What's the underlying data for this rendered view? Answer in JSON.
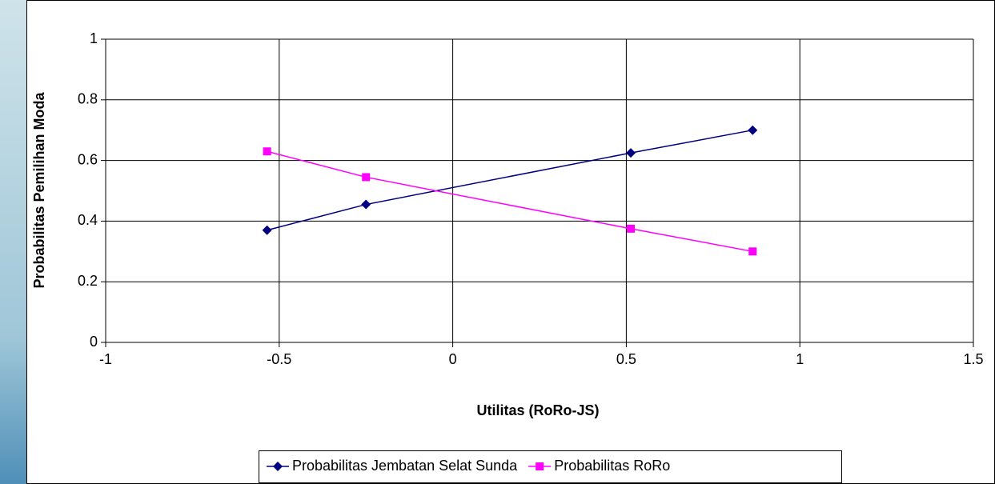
{
  "chart_data": {
    "type": "line",
    "x_label": "Utilitas (RoRo-JS)",
    "y_label": "Probabilitas Pemilihan Moda",
    "series": [
      {
        "name": "Probabilitas Jembatan Selat Sunda",
        "color": "#000080",
        "marker": "diamond",
        "x": [
          -0.535,
          -0.25,
          0.513,
          0.864
        ],
        "values": [
          0.37,
          0.455,
          0.625,
          0.7
        ]
      },
      {
        "name": "Probabilitas RoRo",
        "color": "#ff00ff",
        "marker": "square",
        "x": [
          -0.535,
          -0.25,
          0.513,
          0.864
        ],
        "values": [
          0.63,
          0.545,
          0.375,
          0.3
        ]
      }
    ],
    "xlim": [
      -1,
      1.5
    ],
    "xticks": [
      -1,
      -0.5,
      0,
      0.5,
      1,
      1.5
    ],
    "ylim": [
      0,
      1
    ],
    "yticks": [
      0,
      0.2,
      0.4,
      0.6,
      0.8,
      1
    ],
    "grid": true,
    "legend": "bottom"
  }
}
